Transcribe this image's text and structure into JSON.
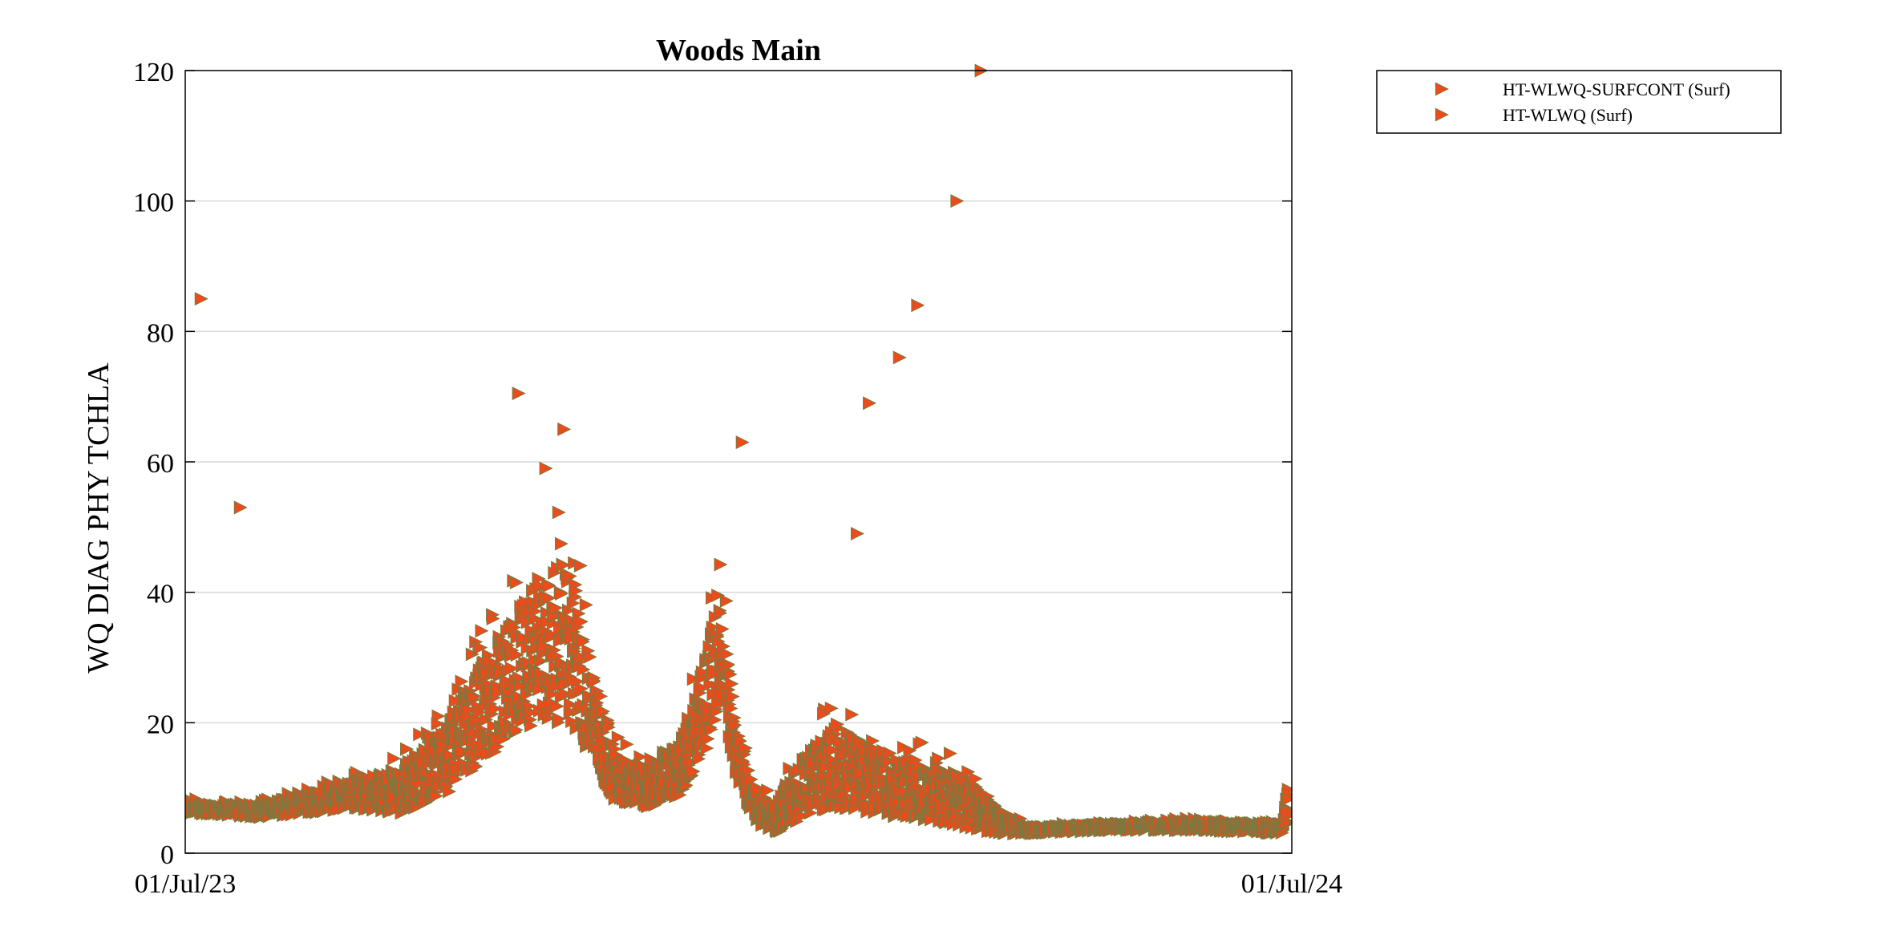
{
  "chart_data": {
    "type": "scatter",
    "title": "Woods Main",
    "ylabel": "WQ DIAG PHY TCHLA",
    "xlabel": "",
    "xlim": [
      "2023-07-01",
      "2024-07-01"
    ],
    "ylim": [
      0,
      120
    ],
    "x_tick_labels": [
      "01/Jul/23",
      "01/Jul/24"
    ],
    "y_ticks": [
      0,
      20,
      40,
      60,
      80,
      100,
      120
    ],
    "grid": "horizontal",
    "legend_position": "outside-top-right",
    "marker": "right-triangle",
    "colors": {
      "marker_fill": "#ec4b1b",
      "marker_edge": "#7a7a40",
      "grid": "#d9d9d9",
      "axis": "#000000"
    },
    "series": [
      {
        "name": "HT-WLWQ-SURFCONT (Surf)",
        "band_points": [
          [
            "2023-07-01",
            6,
            8
          ],
          [
            "2023-07-10",
            6,
            7.5
          ],
          [
            "2023-07-25",
            5.5,
            7.5
          ],
          [
            "2023-08-10",
            6,
            9
          ],
          [
            "2023-08-25",
            7,
            11
          ],
          [
            "2023-09-10",
            6,
            13
          ],
          [
            "2023-09-25",
            9,
            19
          ],
          [
            "2023-10-05",
            13,
            28
          ],
          [
            "2023-10-15",
            17,
            35
          ],
          [
            "2023-10-25",
            20,
            42
          ],
          [
            "2023-11-05",
            20,
            45
          ],
          [
            "2023-11-12",
            15,
            30
          ],
          [
            "2023-11-20",
            8,
            16
          ],
          [
            "2023-12-01",
            7,
            13
          ],
          [
            "2023-12-12",
            9,
            18
          ],
          [
            "2023-12-20",
            15,
            30
          ],
          [
            "2023-12-25",
            24,
            42
          ],
          [
            "2023-12-30",
            12,
            20
          ],
          [
            "2024-01-05",
            5,
            10
          ],
          [
            "2024-01-12",
            3,
            7
          ],
          [
            "2024-01-20",
            5,
            14
          ],
          [
            "2024-02-01",
            7,
            20
          ],
          [
            "2024-02-15",
            6,
            16
          ],
          [
            "2024-03-01",
            5,
            14
          ],
          [
            "2024-03-15",
            4,
            12
          ],
          [
            "2024-03-25",
            3,
            7
          ],
          [
            "2024-04-05",
            3,
            4
          ],
          [
            "2024-05-01",
            3.5,
            4.5
          ],
          [
            "2024-06-01",
            3.5,
            5
          ],
          [
            "2024-06-28",
            3,
            4.5
          ],
          [
            "2024-06-30",
            7,
            12
          ]
        ],
        "outliers": [
          [
            "2023-07-06",
            85
          ],
          [
            "2023-07-19",
            53
          ],
          [
            "2023-10-19",
            70.5
          ],
          [
            "2023-11-03",
            65
          ],
          [
            "2023-10-28",
            59
          ],
          [
            "2024-01-01",
            63
          ],
          [
            "2024-02-08",
            49
          ],
          [
            "2024-02-12",
            69
          ],
          [
            "2024-02-22",
            76
          ],
          [
            "2024-02-28",
            84
          ],
          [
            "2024-03-12",
            100
          ],
          [
            "2024-03-20",
            120
          ]
        ]
      },
      {
        "name": "HT-WLWQ (Surf)"
      }
    ]
  }
}
